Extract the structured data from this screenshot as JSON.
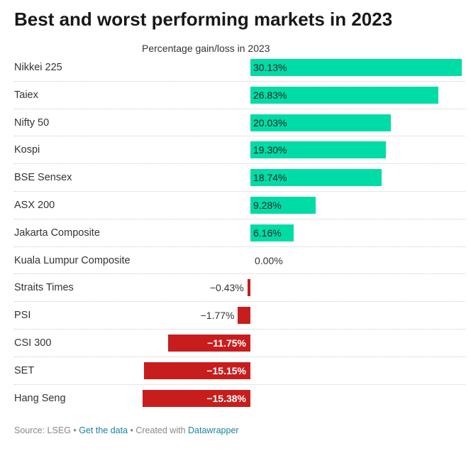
{
  "title": "Best and worst performing markets in 2023",
  "colors": {
    "positive": "#00dca6",
    "negative": "#c71e1d"
  },
  "chart_data": {
    "type": "bar",
    "title": "Best and worst performing markets in 2023",
    "subtitle": "Percentage gain/loss in 2023",
    "categories": [
      "Nikkei 225",
      "Taiex",
      "Nifty 50",
      "Kospi",
      "BSE Sensex",
      "ASX 200",
      "Jakarta Composite",
      "Kuala Lumpur Composite",
      "Straits Times",
      "PSI",
      "CSI 300",
      "SET",
      "Hang Seng"
    ],
    "values": [
      30.13,
      26.83,
      20.03,
      19.3,
      18.74,
      9.28,
      6.16,
      0.0,
      -0.43,
      -1.77,
      -11.75,
      -15.15,
      -15.38
    ],
    "value_labels": [
      "30.13%",
      "26.83%",
      "20.03%",
      "19.30%",
      "18.74%",
      "9.28%",
      "6.16%",
      "0.00%",
      "−0.43%",
      "−1.77%",
      "−11.75%",
      "−15.15%",
      "−15.38%"
    ],
    "xlim": [
      -15.38,
      30.13
    ]
  },
  "footer": {
    "source": "Source: LSEG",
    "sep1": " • ",
    "get_data": "Get the data",
    "sep2": " • Created with ",
    "datawrapper": "Datawrapper"
  }
}
